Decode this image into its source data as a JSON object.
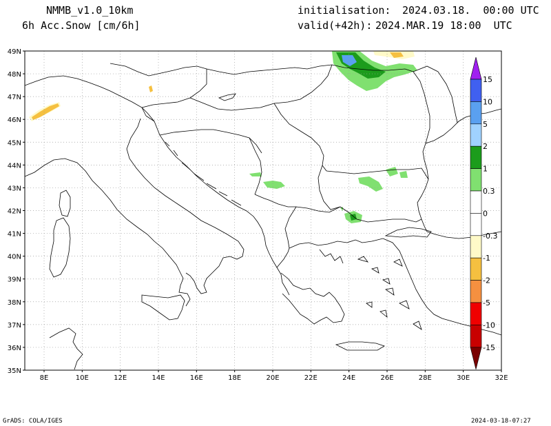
{
  "header": {
    "model": "NMMB_v1.0_10km",
    "variable": "6h Acc.Snow [cm/6h]",
    "init_label": "initialisation:",
    "init_value": "2024.03.18.  00:00 UTC",
    "valid_label": "valid(+42h):",
    "valid_value": "2024.MAR.19 18:00  UTC"
  },
  "axes": {
    "lat_ticks": [
      "49N",
      "48N",
      "47N",
      "46N",
      "45N",
      "44N",
      "43N",
      "42N",
      "41N",
      "40N",
      "39N",
      "38N",
      "37N",
      "36N",
      "35N"
    ],
    "lon_ticks": [
      "8E",
      "10E",
      "12E",
      "14E",
      "16E",
      "18E",
      "20E",
      "22E",
      "24E",
      "26E",
      "28E",
      "30E",
      "32E"
    ]
  },
  "colorbar": {
    "labels": [
      "15",
      "10",
      "5",
      "2",
      "1",
      "0.3",
      "0",
      "-0.3",
      "-1",
      "-2",
      "-5",
      "-10",
      "-15"
    ],
    "colors": {
      "purple": "#a020f0",
      "blue": "#4060f0",
      "blue_mid": "#5aa0f0",
      "blue_light": "#a0d2ff",
      "green_dark": "#1c9c1c",
      "green_light": "#80e070",
      "cream": "#fffac8",
      "yellow": "#f5c040",
      "orange": "#f59040",
      "red": "#f00000",
      "red_dark": "#c80000",
      "maroon": "#7a0000"
    }
  },
  "footer": {
    "left": "GrADS: COLA/IGES",
    "right": "2024-03-18-07:27"
  }
}
